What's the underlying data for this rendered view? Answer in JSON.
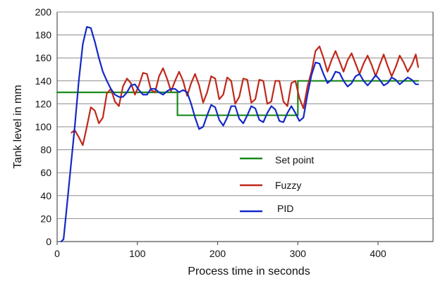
{
  "chart_data": {
    "type": "line",
    "title": "",
    "xlabel": "Process time in seconds",
    "ylabel": "Tank level in mm",
    "xlim": [
      0,
      460
    ],
    "ylim": [
      0,
      200
    ],
    "xticks": [
      0,
      100,
      200,
      300,
      400
    ],
    "yticks": [
      0,
      20,
      40,
      60,
      80,
      100,
      120,
      140,
      160,
      180,
      200
    ],
    "grid": "horizontal",
    "legend_position": "center",
    "series": [
      {
        "name": "Set point",
        "color": "#1a8a1a",
        "x": [
          0,
          150,
          150,
          300,
          300,
          450
        ],
        "y": [
          130,
          130,
          110,
          110,
          140,
          140
        ]
      },
      {
        "name": "Fuzzy",
        "color": "#c0281a",
        "x": [
          18,
          22,
          27,
          32,
          37,
          42,
          47,
          52,
          57,
          62,
          67,
          72,
          77,
          82,
          87,
          92,
          97,
          102,
          107,
          112,
          117,
          122,
          127,
          132,
          137,
          142,
          147,
          152,
          157,
          162,
          167,
          172,
          177,
          182,
          187,
          192,
          197,
          202,
          207,
          212,
          217,
          222,
          227,
          232,
          237,
          242,
          247,
          252,
          257,
          262,
          267,
          272,
          277,
          282,
          287,
          292,
          297,
          302,
          307,
          312,
          317,
          322,
          327,
          332,
          337,
          342,
          347,
          352,
          357,
          362,
          367,
          372,
          377,
          382,
          387,
          392,
          397,
          402,
          407,
          412,
          417,
          422,
          427,
          432,
          437,
          442,
          447,
          450
        ],
        "y": [
          95,
          97,
          91,
          84,
          100,
          117,
          114,
          103,
          108,
          129,
          133,
          122,
          118,
          135,
          142,
          138,
          128,
          136,
          147,
          146,
          132,
          130,
          144,
          151,
          142,
          131,
          140,
          148,
          140,
          127,
          138,
          146,
          136,
          121,
          130,
          144,
          142,
          124,
          128,
          143,
          140,
          120,
          126,
          142,
          141,
          121,
          124,
          141,
          140,
          120,
          122,
          140,
          140,
          122,
          118,
          138,
          140,
          125,
          116,
          135,
          148,
          166,
          170,
          160,
          148,
          158,
          166,
          157,
          148,
          158,
          164,
          155,
          146,
          155,
          162,
          154,
          144,
          154,
          163,
          153,
          144,
          152,
          162,
          156,
          148,
          154,
          163,
          152
        ]
      },
      {
        "name": "PID",
        "color": "#1428c8",
        "x": [
          5,
          8,
          12,
          17,
          22,
          27,
          32,
          37,
          42,
          47,
          52,
          57,
          62,
          67,
          72,
          77,
          82,
          87,
          92,
          97,
          102,
          107,
          112,
          117,
          122,
          127,
          132,
          137,
          142,
          147,
          152,
          157,
          162,
          167,
          172,
          177,
          182,
          187,
          192,
          197,
          202,
          207,
          212,
          217,
          222,
          227,
          232,
          237,
          242,
          247,
          252,
          257,
          262,
          267,
          272,
          277,
          282,
          287,
          292,
          297,
          302,
          307,
          312,
          317,
          322,
          327,
          332,
          337,
          342,
          347,
          352,
          357,
          362,
          367,
          372,
          377,
          382,
          387,
          392,
          397,
          402,
          407,
          412,
          417,
          422,
          427,
          432,
          437,
          442,
          447,
          450
        ],
        "y": [
          0,
          2,
          30,
          65,
          100,
          140,
          172,
          187,
          186,
          174,
          160,
          148,
          140,
          133,
          128,
          126,
          126,
          130,
          136,
          137,
          132,
          128,
          128,
          133,
          133,
          130,
          128,
          131,
          133,
          133,
          130,
          132,
          130,
          120,
          108,
          98,
          100,
          110,
          119,
          117,
          106,
          101,
          108,
          118,
          118,
          107,
          103,
          110,
          118,
          116,
          106,
          104,
          112,
          118,
          115,
          105,
          104,
          112,
          118,
          112,
          105,
          108,
          128,
          145,
          156,
          155,
          146,
          138,
          141,
          148,
          147,
          140,
          135,
          138,
          144,
          146,
          140,
          136,
          140,
          145,
          141,
          136,
          138,
          143,
          141,
          137,
          140,
          143,
          141,
          137,
          137
        ]
      }
    ]
  }
}
